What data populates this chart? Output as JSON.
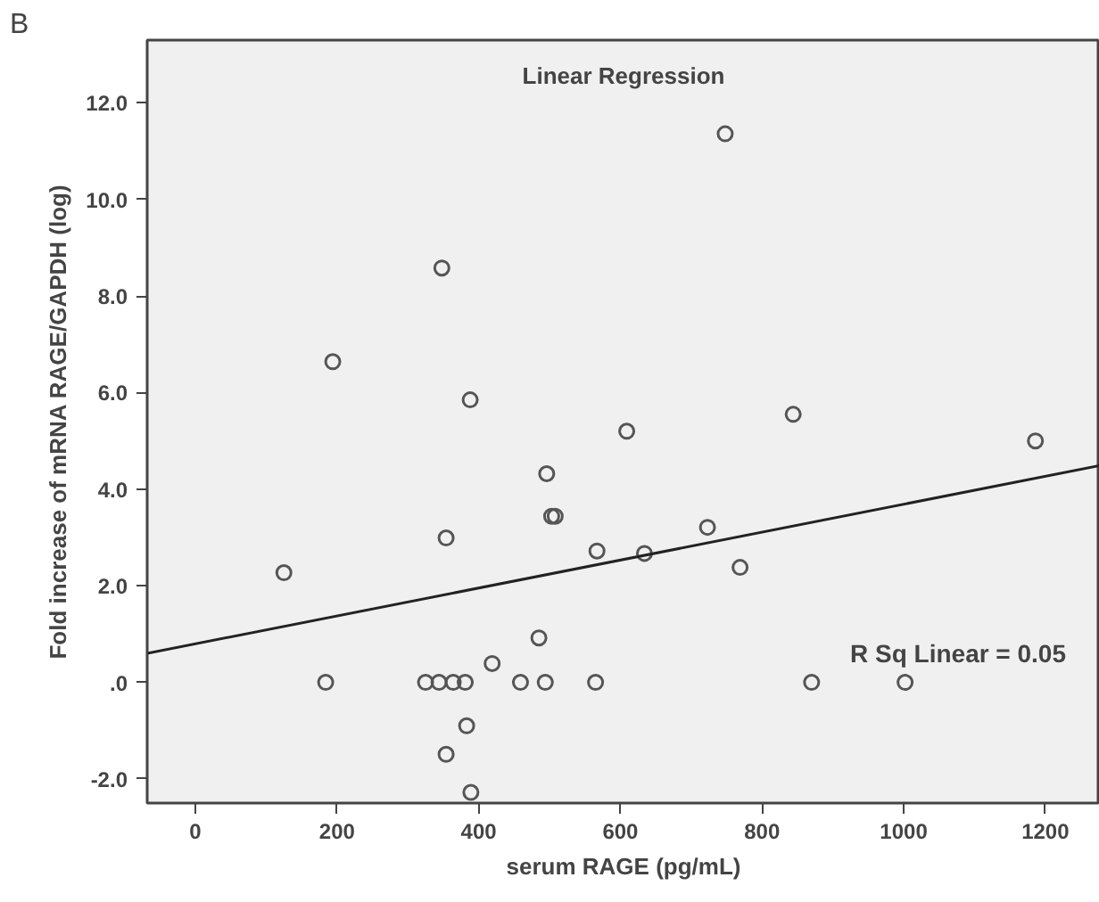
{
  "chart_data": {
    "type": "scatter",
    "title": "Linear Regression",
    "xlabel": "serum RAGE (pg/mL)",
    "ylabel": "Fold increase of mRNA RAGE/GAPDH (log)",
    "annotations": [
      "B",
      "R Sq Linear = 0.05"
    ],
    "xlim": [
      -68,
      1277
    ],
    "ylim": [
      -2.5,
      13.3
    ],
    "xticks": [
      0,
      200,
      400,
      600,
      800,
      1000,
      1200
    ],
    "yticks": [
      {
        "value": -2,
        "label": "-2.0"
      },
      {
        "value": 0,
        "label": ".0"
      },
      {
        "value": 2,
        "label": "2.0"
      },
      {
        "value": 4,
        "label": "4.0"
      },
      {
        "value": 6,
        "label": "6.0"
      },
      {
        "value": 8,
        "label": "8.0"
      },
      {
        "value": 10,
        "label": "10.0"
      },
      {
        "value": 12,
        "label": "12.0"
      }
    ],
    "grid": false,
    "series": [
      {
        "marker": "circle",
        "color": "#555555",
        "x": [
          125,
          184,
          194,
          348,
          388,
          496,
          748,
          609,
          844,
          1186,
          354,
          503,
          508,
          567,
          485,
          419,
          325,
          344,
          364,
          381,
          459,
          494,
          565,
          383,
          354,
          389,
          634,
          723,
          769,
          870,
          1002
        ],
        "values": [
          2.27,
          0,
          6.64,
          8.58,
          5.85,
          4.32,
          11.36,
          5.2,
          5.55,
          5.0,
          2.99,
          3.44,
          3.44,
          2.72,
          0.92,
          0.39,
          0,
          0,
          0,
          0,
          0,
          0,
          0,
          -0.9,
          -1.49,
          -2.28,
          2.67,
          3.21,
          2.38,
          0,
          0
        ]
      },
      {
        "type": "line",
        "color": "#222222",
        "line_style": "solid",
        "x": [
          -68,
          1277
        ],
        "values": [
          0.6,
          4.49
        ]
      }
    ]
  }
}
